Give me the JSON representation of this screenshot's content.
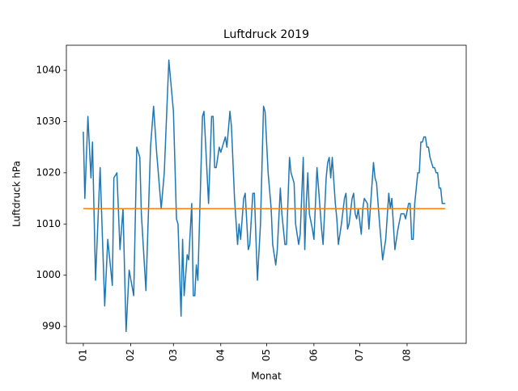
{
  "chart_data": {
    "type": "line",
    "title": "Luftdruck 2019",
    "xlabel": "Monat",
    "ylabel": "Luftdruck hPa",
    "xlim": [
      -11.1,
      250.7
    ],
    "ylim": [
      986.7,
      1044.9
    ],
    "xticks": [
      {
        "value": 0,
        "label": "01"
      },
      {
        "value": 31,
        "label": "02"
      },
      {
        "value": 59,
        "label": "03"
      },
      {
        "value": 90,
        "label": "04"
      },
      {
        "value": 120,
        "label": "05"
      },
      {
        "value": 151,
        "label": "06"
      },
      {
        "value": 181,
        "label": "07"
      },
      {
        "value": 212,
        "label": "08"
      }
    ],
    "yticks": [
      990,
      1000,
      1010,
      1020,
      1030,
      1040
    ],
    "series": [
      {
        "color": "#1f77b4",
        "x": [
          0,
          1,
          3,
          5,
          6,
          8,
          11,
          14,
          16,
          19,
          20,
          22,
          24,
          26,
          28,
          30,
          33,
          35,
          37,
          38,
          41,
          44,
          46,
          48,
          51,
          53,
          56,
          59,
          61,
          62,
          64,
          65,
          66,
          68,
          69,
          71,
          72,
          73,
          74,
          75,
          78,
          79,
          80,
          82,
          84,
          85,
          86,
          87,
          89,
          90,
          91,
          93,
          94,
          96,
          97,
          99,
          101,
          102,
          103,
          105,
          106,
          108,
          109,
          111,
          112,
          114,
          116,
          118,
          119,
          121,
          123,
          124,
          126,
          127,
          129,
          130,
          132,
          133,
          135,
          136,
          138,
          139,
          141,
          142,
          144,
          145,
          146,
          147,
          148,
          150,
          151,
          153,
          154,
          156,
          157,
          159,
          160,
          161,
          162,
          163,
          165,
          166,
          167,
          169,
          171,
          172,
          173,
          174,
          176,
          177,
          178,
          179,
          180,
          182,
          183,
          184,
          186,
          187,
          190,
          191,
          192,
          194,
          196,
          198,
          200,
          201,
          202,
          204,
          206,
          208,
          210,
          211,
          213,
          214,
          215,
          216,
          217,
          219,
          220,
          221,
          222,
          223,
          224,
          225,
          226,
          227,
          229,
          230,
          231,
          232,
          233,
          234,
          235,
          237
        ],
        "values": [
          1028,
          1015,
          1031,
          1019,
          1026,
          999,
          1021,
          994,
          1007,
          998,
          1019,
          1020,
          1005,
          1013,
          989,
          1001,
          996,
          1025,
          1023,
          1012,
          997,
          1025,
          1033,
          1024,
          1013,
          1020,
          1042,
          1032,
          1011,
          1010,
          992,
          1007,
          996,
          1004,
          1003,
          1014,
          996,
          996,
          1002,
          999,
          1031,
          1032,
          1026,
          1014,
          1031,
          1031,
          1021,
          1021,
          1025,
          1024,
          1025,
          1027,
          1025,
          1032,
          1029,
          1015,
          1006,
          1010,
          1007,
          1015,
          1016,
          1005,
          1006,
          1016,
          1016,
          999,
          1010,
          1033,
          1032,
          1020,
          1013,
          1006,
          1002,
          1005,
          1017,
          1012,
          1006,
          1006,
          1023,
          1020,
          1018,
          1010,
          1006,
          1008,
          1023,
          1005,
          1014,
          1020,
          1012,
          1009,
          1007,
          1021,
          1017,
          1009,
          1006,
          1019,
          1022,
          1023,
          1019,
          1023,
          1014,
          1011,
          1006,
          1010,
          1015,
          1016,
          1009,
          1010,
          1015,
          1016,
          1012,
          1011,
          1013,
          1008,
          1013,
          1015,
          1014,
          1009,
          1022,
          1019,
          1018,
          1010,
          1003,
          1007,
          1016,
          1013,
          1015,
          1005,
          1009,
          1012,
          1012,
          1011,
          1014,
          1014,
          1007,
          1007,
          1014,
          1020,
          1020,
          1026,
          1026,
          1027,
          1027,
          1025,
          1025,
          1023,
          1021,
          1021,
          1020,
          1020,
          1017,
          1017,
          1014,
          1014
        ]
      },
      {
        "color": "#ff7f0e",
        "x": [
          0,
          237
        ],
        "values": [
          1013,
          1013
        ]
      }
    ]
  }
}
